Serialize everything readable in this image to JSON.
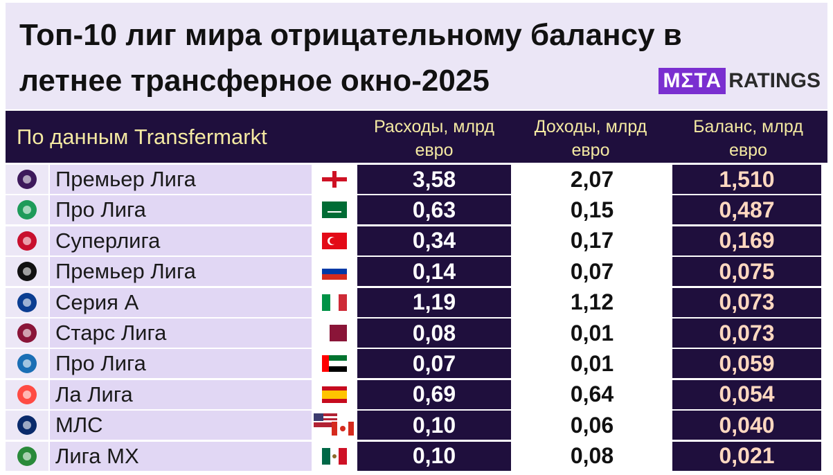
{
  "header": {
    "title_lines": [
      "Топ-10 лиг мира отрицательному балансу в",
      "летнее трансферное окно-2025"
    ],
    "logo": {
      "mark": "MΣTA",
      "word": "RATINGS"
    }
  },
  "table": {
    "source": "По данным Transfermarkt",
    "columns": [
      "Расходы, млрд евро",
      "Доходы, млрд евро",
      "Баланс, млрд евро"
    ],
    "rows": [
      [
        "Премьер Лига",
        "3,58",
        "2,07",
        "1,510"
      ],
      [
        "Про Лига",
        "0,63",
        "0,15",
        "0,487"
      ],
      [
        "Суперлига",
        "0,34",
        "0,17",
        "0,169"
      ],
      [
        "Премьер Лига",
        "0,14",
        "0,07",
        "0,075"
      ],
      [
        "Серия А",
        "1,19",
        "1,12",
        "0,073"
      ],
      [
        "Старс Лига",
        "0,08",
        "0,01",
        "0,073"
      ],
      [
        "Про Лига",
        "0,07",
        "0,01",
        "0,059"
      ],
      [
        "Ла Лига",
        "0,69",
        "0,64",
        "0,054"
      ],
      [
        "МЛС",
        "0,10",
        "0,06",
        "0,040"
      ],
      [
        "Лига МХ",
        "0,10",
        "0,08",
        "0,021"
      ]
    ]
  }
}
